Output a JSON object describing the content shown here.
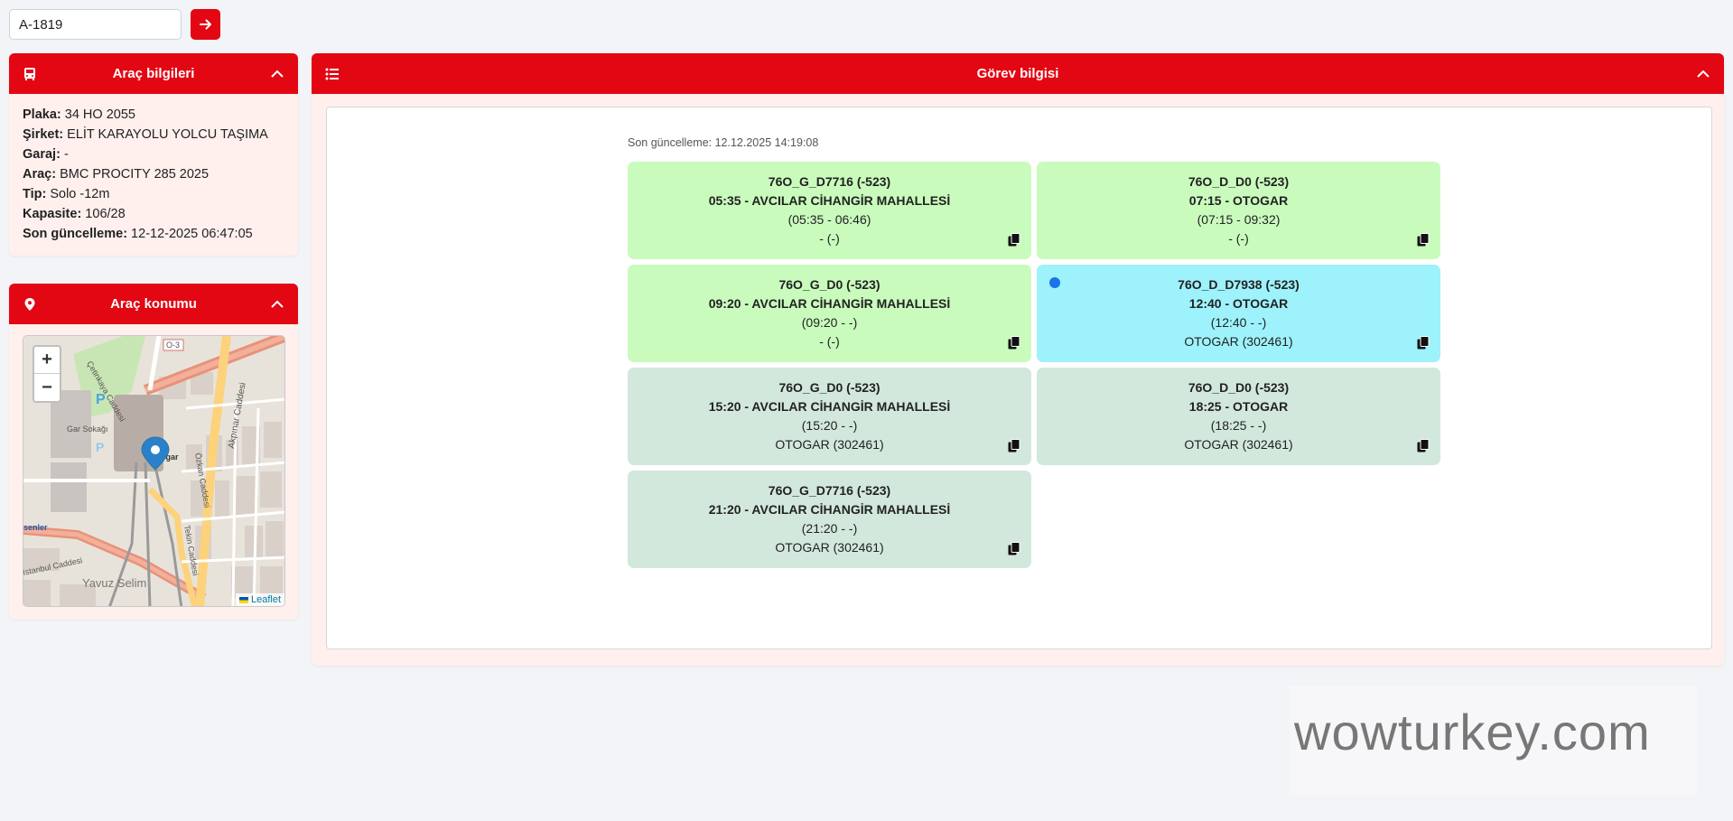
{
  "search": {
    "value": "A-1819",
    "button_icon": "arrow-right-icon"
  },
  "colors": {
    "accent": "#e30613",
    "tile_green": "#c9fbbd",
    "tile_cyan": "#9df2fb",
    "tile_grey": "#d2e8dc"
  },
  "vehicle": {
    "title": "Araç bilgileri",
    "rows": [
      {
        "label": "Plaka:",
        "value": " 34 HO 2055"
      },
      {
        "label": "Şirket:",
        "value": " ELİT KARAYOLU YOLCU TAŞIMA"
      },
      {
        "label": "Garaj:",
        "value": " -"
      },
      {
        "label": "Araç:",
        "value": " BMC PROCITY 285 2025"
      },
      {
        "label": "Tip:",
        "value": " Solo -12m"
      },
      {
        "label": "Kapasite:",
        "value": " 106/28"
      },
      {
        "label": "Son güncelleme:",
        "value": " 12-12-2025 06:47:05"
      }
    ]
  },
  "location": {
    "title": "Araç konumu",
    "zoom_in": "+",
    "zoom_out": "−",
    "attribution": "Leaflet",
    "map_labels": [
      "O-3",
      "Çetinkaya Caddesi",
      "Gar Sokağı",
      "Otogar",
      "Akpınar Caddesi",
      "Özkan Caddesi",
      "Tekin Caddesi",
      "Yavuz Selim",
      "senler",
      "İstanbul Caddesi"
    ]
  },
  "tasks": {
    "title": "Görev bilgisi",
    "last_update": "Son güncelleme: 12.12.2025 14:19:08",
    "items": [
      {
        "code": "76O_G_D7716 (-523)",
        "route": "05:35 - AVCILAR CİHANGİR MAHALLESİ",
        "time": "(05:35 - 06:46)",
        "stop": "- (-)",
        "status": "green",
        "active": false
      },
      {
        "code": "76O_D_D0 (-523)",
        "route": "07:15 - OTOGAR",
        "time": "(07:15 - 09:32)",
        "stop": "- (-)",
        "status": "green",
        "active": false
      },
      {
        "code": "76O_G_D0 (-523)",
        "route": "09:20 - AVCILAR CİHANGİR MAHALLESİ",
        "time": "(09:20 - -)",
        "stop": "- (-)",
        "status": "green",
        "active": false
      },
      {
        "code": "76O_D_D7938 (-523)",
        "route": "12:40 - OTOGAR",
        "time": "(12:40 - -)",
        "stop": "OTOGAR (302461)",
        "status": "cyan",
        "active": true
      },
      {
        "code": "76O_G_D0 (-523)",
        "route": "15:20 - AVCILAR CİHANGİR MAHALLESİ",
        "time": "(15:20 - -)",
        "stop": "OTOGAR (302461)",
        "status": "grey",
        "active": false
      },
      {
        "code": "76O_D_D0 (-523)",
        "route": "18:25 - OTOGAR",
        "time": "(18:25 - -)",
        "stop": "OTOGAR (302461)",
        "status": "grey",
        "active": false
      },
      {
        "code": "76O_G_D7716 (-523)",
        "route": "21:20 - AVCILAR CİHANGİR MAHALLESİ",
        "time": "(21:20 - -)",
        "stop": "OTOGAR (302461)",
        "status": "grey",
        "active": false
      }
    ]
  },
  "watermark": "wowturkey.com"
}
